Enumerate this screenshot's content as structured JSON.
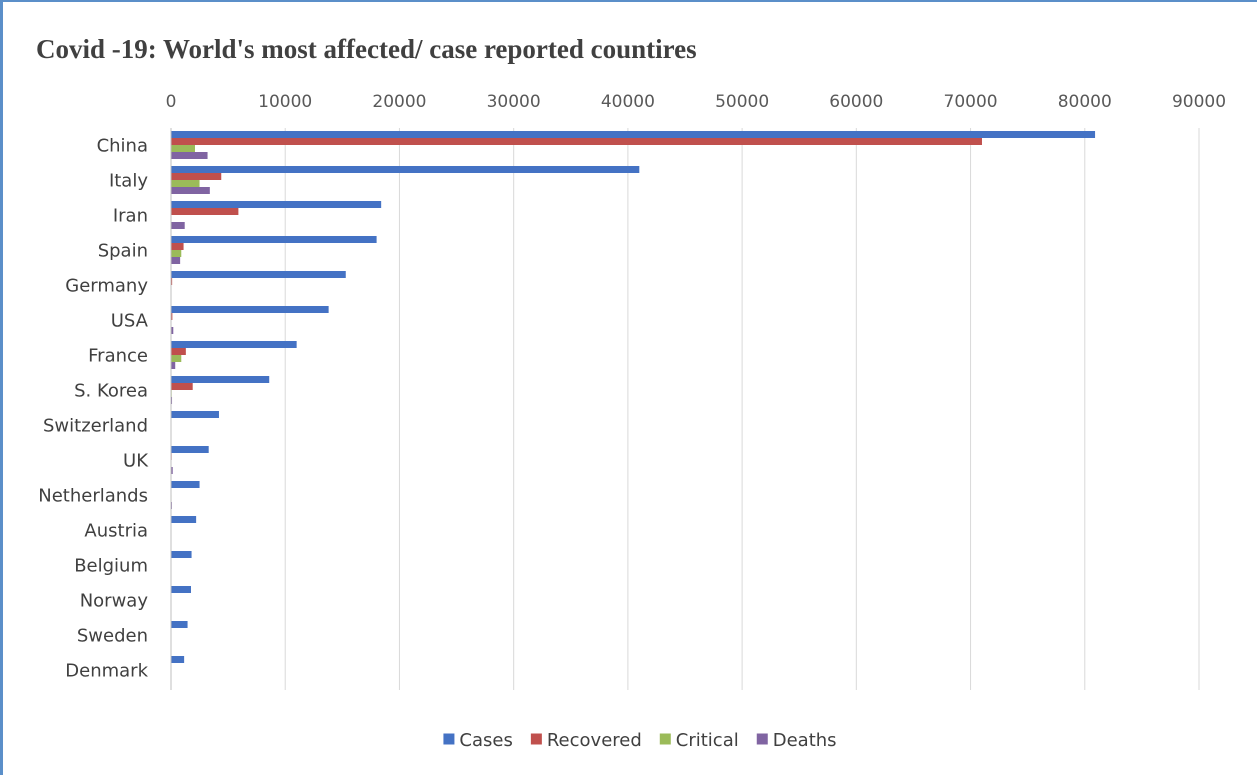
{
  "chart_data": {
    "type": "bar",
    "orientation": "horizontal",
    "title": "Covid -19: World's most affected/ case reported countires",
    "xlim": [
      0,
      90000
    ],
    "x_ticks": [
      0,
      10000,
      20000,
      30000,
      40000,
      50000,
      60000,
      70000,
      80000,
      90000
    ],
    "x_tick_labels": [
      "0",
      "10000",
      "20000",
      "30000",
      "40000",
      "50000",
      "60000",
      "70000",
      "80000",
      "90000"
    ],
    "x_axis_position": "top",
    "grid": true,
    "legend_position": "bottom",
    "categories": [
      "China",
      "Italy",
      "Iran",
      "Spain",
      "Germany",
      "USA",
      "France",
      "S. Korea",
      "Switzerland",
      "UK",
      "Netherlands",
      "Austria",
      "Belgium",
      "Norway",
      "Sweden",
      "Denmark"
    ],
    "series": [
      {
        "name": "Cases",
        "color": "#4472c4",
        "values": [
          80900,
          41000,
          18400,
          18000,
          15300,
          13800,
          11000,
          8600,
          4200,
          3300,
          2500,
          2200,
          1800,
          1750,
          1450,
          1150
        ]
      },
      {
        "name": "Recovered",
        "color": "#c0504d",
        "values": [
          71000,
          4400,
          5900,
          1100,
          100,
          120,
          1300,
          1900,
          30,
          60,
          2,
          10,
          30,
          1,
          1,
          1
        ]
      },
      {
        "name": "Critical",
        "color": "#9bbb59",
        "values": [
          2100,
          2500,
          0,
          900,
          10,
          20,
          900,
          60,
          30,
          20,
          45,
          20,
          30,
          30,
          10,
          10
        ]
      },
      {
        "name": "Deaths",
        "color": "#8064a2",
        "values": [
          3200,
          3400,
          1200,
          800,
          40,
          200,
          370,
          90,
          40,
          150,
          80,
          6,
          14,
          7,
          10,
          4
        ]
      }
    ]
  }
}
